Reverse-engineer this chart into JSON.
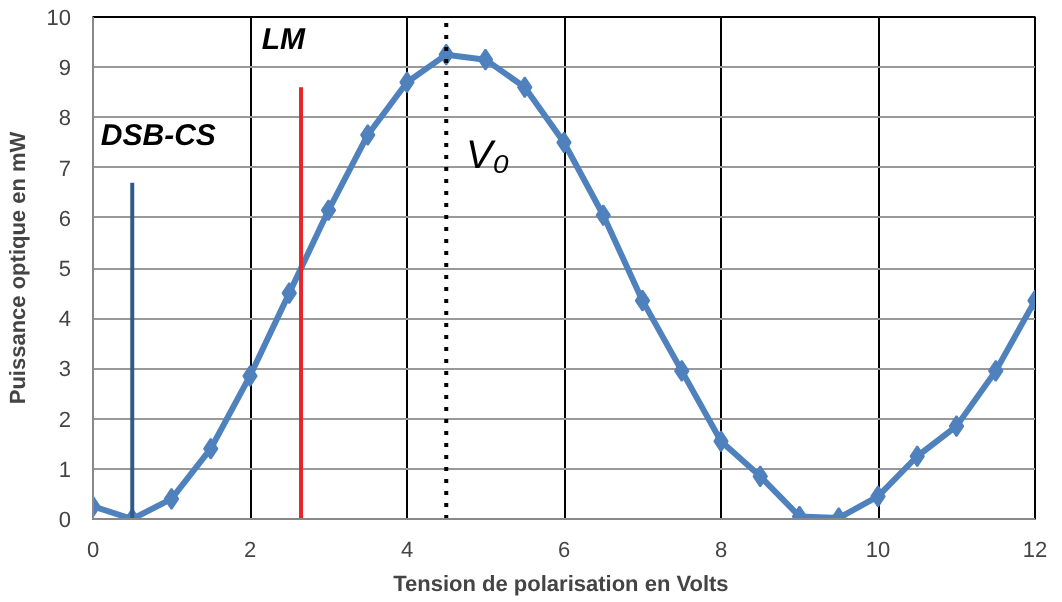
{
  "chart_data": {
    "type": "line",
    "xlabel": "Tension de polarisation  en Volts",
    "ylabel": "Puissance optique en mW",
    "x": [
      0,
      0.5,
      1,
      1.5,
      2,
      2.5,
      3,
      3.5,
      4,
      4.5,
      5,
      5.5,
      6,
      6.5,
      7,
      7.5,
      8,
      8.5,
      9,
      9.5,
      10,
      10.5,
      11,
      11.5,
      12
    ],
    "series": [
      {
        "color": "#4f81bd",
        "values": [
          0.25,
          0,
          0.4,
          1.4,
          2.85,
          4.5,
          6.15,
          7.65,
          8.7,
          9.25,
          9.15,
          8.6,
          7.5,
          6.05,
          4.35,
          2.95,
          1.55,
          0.85,
          0.05,
          0.02,
          0.45,
          1.25,
          1.85,
          2.95,
          4.35
        ]
      }
    ],
    "xlim": [
      0,
      12
    ],
    "xticks": [
      0,
      2,
      4,
      6,
      8,
      10,
      12
    ],
    "ylim": [
      0,
      10
    ],
    "yticks": [
      0,
      1,
      2,
      3,
      4,
      5,
      6,
      7,
      8,
      9,
      10
    ],
    "grid": true,
    "marker": "diamond",
    "line_style": "solid",
    "ref_lines": [
      {
        "axis": "x",
        "value": 0.5,
        "label": "DSB-CS",
        "color": "#2f5b8a",
        "line_style": "solid"
      },
      {
        "axis": "x",
        "value": 2.65,
        "label": "LM",
        "color": "#e8252b",
        "line_style": "solid"
      },
      {
        "axis": "x",
        "value": 4.5,
        "label": "V₀",
        "color": "#000000",
        "line_style": "dotted"
      }
    ]
  }
}
